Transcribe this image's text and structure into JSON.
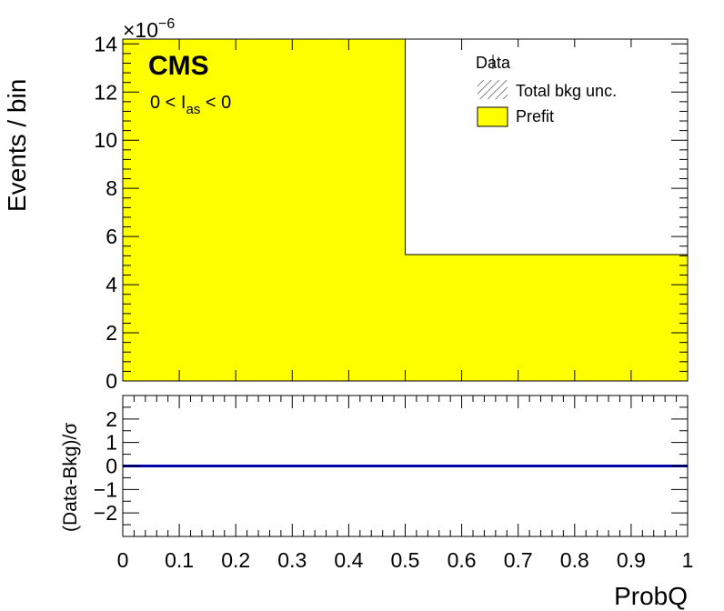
{
  "chart_data": [
    {
      "type": "bar",
      "panel": "main",
      "ylabel": "Events / bin",
      "y_exponent_base": "×10",
      "y_exponent_power": "−6",
      "ylim": [
        0,
        14.2
      ],
      "y_ticks": [
        "0",
        "2",
        "4",
        "6",
        "8",
        "10",
        "12",
        "14"
      ],
      "y_tick_values": [
        0,
        2,
        4,
        6,
        8,
        10,
        12,
        14
      ],
      "xlim": [
        0,
        1
      ],
      "bin_edges": [
        0,
        0.5,
        1
      ],
      "series": [
        {
          "name": "Prefit",
          "values": [
            14.2,
            5.25
          ],
          "color": "#ffff00"
        }
      ],
      "cms_label": "CMS",
      "selection_label": {
        "pre": "0 < I",
        "sub": "as",
        "post": " < 0"
      },
      "legend": {
        "position": "top-right",
        "entries": [
          {
            "label": "Data",
            "kind": "marker"
          },
          {
            "label": "Total bkg unc.",
            "kind": "hatch"
          },
          {
            "label": "Prefit",
            "kind": "fill",
            "color": "#ffff00"
          }
        ]
      }
    },
    {
      "type": "line",
      "panel": "ratio",
      "ylabel": "(Data-Bkg)/σ",
      "xlabel": "ProbQ",
      "ylim": [
        -3,
        3
      ],
      "y_ticks": [
        "−2",
        "−1",
        "0",
        "1",
        "2"
      ],
      "y_tick_values": [
        -2,
        -1,
        0,
        1,
        2
      ],
      "xlim": [
        0,
        1
      ],
      "x_ticks": [
        "0",
        "0.1",
        "0.2",
        "0.3",
        "0.4",
        "0.5",
        "0.6",
        "0.7",
        "0.8",
        "0.9",
        "1"
      ],
      "x_tick_values": [
        0,
        0.1,
        0.2,
        0.3,
        0.4,
        0.5,
        0.6,
        0.7,
        0.8,
        0.9,
        1
      ],
      "series": [
        {
          "name": "",
          "x": [
            0,
            1
          ],
          "y": [
            0,
            0
          ],
          "color": "#0000aa"
        }
      ]
    }
  ]
}
